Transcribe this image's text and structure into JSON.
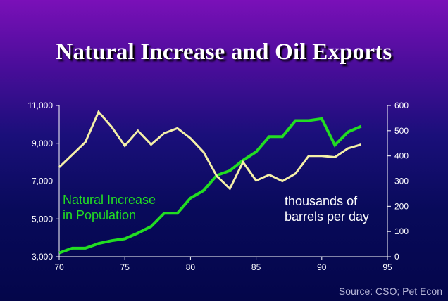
{
  "title": "Natural Increase and Oil Exports",
  "source": "Source: CSO; Pet Econ",
  "colors": {
    "population": "#22dd22",
    "oil": "#f5f0a8",
    "axis": "#ffffff",
    "tick_text": "#ffffff"
  },
  "chart_data": {
    "type": "line",
    "title": "Natural Increase and Oil Exports",
    "x_ticks": [
      70,
      75,
      80,
      85,
      90,
      95
    ],
    "xlim": [
      70,
      95
    ],
    "y_left": {
      "lim": [
        3000,
        11000
      ],
      "ticks": [
        "3,000",
        "5,000",
        "7,000",
        "9,000",
        "11,000"
      ],
      "tick_values": [
        3000,
        5000,
        7000,
        9000,
        11000
      ]
    },
    "y_right": {
      "lim": [
        0,
        600
      ],
      "ticks": [
        "0",
        "100",
        "200",
        "300",
        "400",
        "500",
        "600"
      ],
      "tick_values": [
        0,
        100,
        200,
        300,
        400,
        500,
        600
      ]
    },
    "grid": false,
    "series": [
      {
        "key": "population",
        "name": "Natural Increase in Population",
        "label_lines": [
          "Natural Increase",
          "in Population"
        ],
        "axis": "left",
        "x": [
          70,
          71,
          72,
          73,
          74,
          75,
          76,
          77,
          78,
          79,
          80,
          81,
          82,
          83,
          84,
          85,
          86,
          87,
          88,
          89,
          90,
          91,
          92,
          93
        ],
        "y": [
          3200,
          3450,
          3450,
          3700,
          3850,
          3950,
          4250,
          4600,
          5300,
          5300,
          6100,
          6500,
          7300,
          7550,
          8100,
          8550,
          9350,
          9350,
          10200,
          10200,
          10300,
          8900,
          9600,
          9900
        ]
      },
      {
        "key": "oil",
        "name": "thousands of barrels per day",
        "label_lines": [
          "thousands of",
          "barrels per day"
        ],
        "axis": "right",
        "x": [
          70,
          71,
          72,
          73,
          74,
          75,
          76,
          77,
          78,
          79,
          80,
          81,
          82,
          83,
          84,
          85,
          86,
          87,
          88,
          89,
          90,
          91,
          92,
          93
        ],
        "y": [
          355,
          405,
          455,
          575,
          515,
          440,
          500,
          445,
          490,
          510,
          470,
          415,
          320,
          270,
          375,
          302,
          325,
          300,
          330,
          400,
          400,
          395,
          430,
          445
        ]
      }
    ]
  }
}
